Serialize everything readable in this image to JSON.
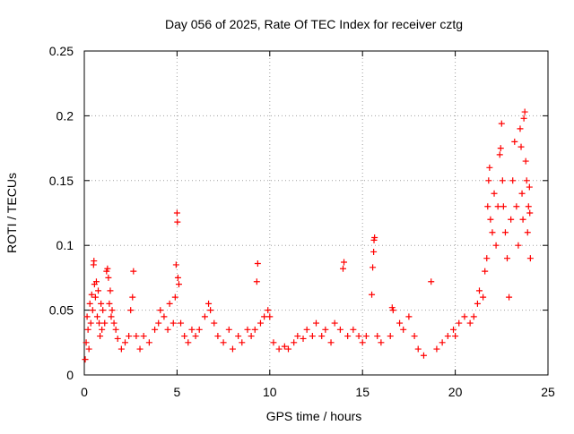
{
  "chart_data": {
    "type": "scatter",
    "title": "Day 056 of 2025, Rate Of TEC Index for receiver cztg",
    "xlabel": "GPS time / hours",
    "ylabel": "ROTI / TECUs",
    "xlim": [
      0,
      25
    ],
    "ylim": [
      0,
      0.25
    ],
    "xticks": [
      0,
      5,
      10,
      15,
      20,
      25
    ],
    "xtick_labels": [
      "0",
      "5",
      "10",
      "15",
      "20",
      "25"
    ],
    "yticks": [
      0,
      0.05,
      0.1,
      0.15,
      0.2,
      0.25
    ],
    "ytick_labels": [
      "0",
      "0.05",
      "0.1",
      "0.15",
      "0.2",
      "0.25"
    ],
    "grid": true,
    "marker": "+",
    "marker_color": "#ff0000",
    "series": [
      {
        "name": "ROTI",
        "points": [
          [
            0.05,
            0.012
          ],
          [
            0.1,
            0.025
          ],
          [
            0.15,
            0.045
          ],
          [
            0.2,
            0.035
          ],
          [
            0.25,
            0.02
          ],
          [
            0.3,
            0.055
          ],
          [
            0.35,
            0.04
          ],
          [
            0.4,
            0.062
          ],
          [
            0.45,
            0.05
          ],
          [
            0.5,
            0.085
          ],
          [
            0.52,
            0.088
          ],
          [
            0.55,
            0.07
          ],
          [
            0.6,
            0.06
          ],
          [
            0.65,
            0.072
          ],
          [
            0.7,
            0.045
          ],
          [
            0.75,
            0.065
          ],
          [
            0.8,
            0.04
          ],
          [
            0.85,
            0.03
          ],
          [
            0.9,
            0.055
          ],
          [
            0.95,
            0.035
          ],
          [
            1.0,
            0.05
          ],
          [
            1.1,
            0.04
          ],
          [
            1.2,
            0.08
          ],
          [
            1.25,
            0.082
          ],
          [
            1.3,
            0.075
          ],
          [
            1.35,
            0.055
          ],
          [
            1.4,
            0.065
          ],
          [
            1.45,
            0.045
          ],
          [
            1.5,
            0.05
          ],
          [
            1.6,
            0.04
          ],
          [
            1.7,
            0.035
          ],
          [
            1.8,
            0.028
          ],
          [
            2.0,
            0.02
          ],
          [
            2.2,
            0.025
          ],
          [
            2.4,
            0.03
          ],
          [
            2.5,
            0.05
          ],
          [
            2.6,
            0.06
          ],
          [
            2.65,
            0.08
          ],
          [
            2.8,
            0.03
          ],
          [
            3.0,
            0.02
          ],
          [
            3.2,
            0.03
          ],
          [
            3.5,
            0.025
          ],
          [
            3.8,
            0.035
          ],
          [
            4.0,
            0.04
          ],
          [
            4.1,
            0.05
          ],
          [
            4.3,
            0.045
          ],
          [
            4.5,
            0.035
          ],
          [
            4.6,
            0.055
          ],
          [
            4.8,
            0.04
          ],
          [
            4.9,
            0.06
          ],
          [
            4.95,
            0.085
          ],
          [
            5.0,
            0.125
          ],
          [
            5.02,
            0.118
          ],
          [
            5.05,
            0.075
          ],
          [
            5.1,
            0.07
          ],
          [
            5.2,
            0.04
          ],
          [
            5.4,
            0.03
          ],
          [
            5.6,
            0.025
          ],
          [
            5.8,
            0.035
          ],
          [
            6.0,
            0.03
          ],
          [
            6.2,
            0.035
          ],
          [
            6.5,
            0.045
          ],
          [
            6.7,
            0.055
          ],
          [
            6.8,
            0.05
          ],
          [
            7.0,
            0.04
          ],
          [
            7.2,
            0.03
          ],
          [
            7.5,
            0.025
          ],
          [
            7.8,
            0.035
          ],
          [
            8.0,
            0.02
          ],
          [
            8.3,
            0.03
          ],
          [
            8.5,
            0.025
          ],
          [
            8.8,
            0.035
          ],
          [
            9.0,
            0.03
          ],
          [
            9.2,
            0.035
          ],
          [
            9.3,
            0.072
          ],
          [
            9.35,
            0.086
          ],
          [
            9.5,
            0.04
          ],
          [
            9.7,
            0.045
          ],
          [
            9.9,
            0.05
          ],
          [
            10.0,
            0.045
          ],
          [
            10.2,
            0.025
          ],
          [
            10.5,
            0.02
          ],
          [
            10.8,
            0.022
          ],
          [
            11.0,
            0.02
          ],
          [
            11.3,
            0.025
          ],
          [
            11.5,
            0.03
          ],
          [
            11.8,
            0.028
          ],
          [
            12.0,
            0.035
          ],
          [
            12.3,
            0.03
          ],
          [
            12.5,
            0.04
          ],
          [
            12.8,
            0.03
          ],
          [
            13.0,
            0.035
          ],
          [
            13.3,
            0.025
          ],
          [
            13.5,
            0.04
          ],
          [
            13.8,
            0.035
          ],
          [
            13.95,
            0.082
          ],
          [
            14.0,
            0.087
          ],
          [
            14.2,
            0.03
          ],
          [
            14.5,
            0.035
          ],
          [
            14.8,
            0.03
          ],
          [
            15.0,
            0.025
          ],
          [
            15.2,
            0.03
          ],
          [
            15.5,
            0.062
          ],
          [
            15.55,
            0.083
          ],
          [
            15.6,
            0.095
          ],
          [
            15.62,
            0.104
          ],
          [
            15.65,
            0.106
          ],
          [
            15.8,
            0.03
          ],
          [
            16.0,
            0.025
          ],
          [
            16.5,
            0.03
          ],
          [
            16.6,
            0.052
          ],
          [
            16.65,
            0.05
          ],
          [
            17.0,
            0.04
          ],
          [
            17.2,
            0.035
          ],
          [
            17.5,
            0.045
          ],
          [
            17.8,
            0.03
          ],
          [
            18.0,
            0.02
          ],
          [
            18.3,
            0.015
          ],
          [
            18.7,
            0.072
          ],
          [
            19.0,
            0.02
          ],
          [
            19.3,
            0.025
          ],
          [
            19.6,
            0.03
          ],
          [
            19.9,
            0.035
          ],
          [
            20.0,
            0.03
          ],
          [
            20.2,
            0.04
          ],
          [
            20.5,
            0.045
          ],
          [
            20.8,
            0.04
          ],
          [
            21.0,
            0.045
          ],
          [
            21.2,
            0.055
          ],
          [
            21.3,
            0.065
          ],
          [
            21.5,
            0.06
          ],
          [
            21.6,
            0.08
          ],
          [
            21.7,
            0.09
          ],
          [
            21.75,
            0.13
          ],
          [
            21.8,
            0.15
          ],
          [
            21.85,
            0.16
          ],
          [
            21.9,
            0.12
          ],
          [
            22.0,
            0.11
          ],
          [
            22.1,
            0.14
          ],
          [
            22.2,
            0.1
          ],
          [
            22.3,
            0.13
          ],
          [
            22.4,
            0.17
          ],
          [
            22.45,
            0.175
          ],
          [
            22.5,
            0.194
          ],
          [
            22.55,
            0.15
          ],
          [
            22.6,
            0.13
          ],
          [
            22.7,
            0.11
          ],
          [
            22.8,
            0.09
          ],
          [
            22.9,
            0.06
          ],
          [
            23.0,
            0.12
          ],
          [
            23.1,
            0.15
          ],
          [
            23.2,
            0.18
          ],
          [
            23.3,
            0.13
          ],
          [
            23.4,
            0.1
          ],
          [
            23.5,
            0.19
          ],
          [
            23.55,
            0.176
          ],
          [
            23.6,
            0.14
          ],
          [
            23.65,
            0.12
          ],
          [
            23.7,
            0.198
          ],
          [
            23.75,
            0.203
          ],
          [
            23.8,
            0.165
          ],
          [
            23.85,
            0.15
          ],
          [
            23.9,
            0.11
          ],
          [
            23.95,
            0.13
          ],
          [
            24.0,
            0.145
          ],
          [
            24.02,
            0.125
          ],
          [
            24.05,
            0.09
          ]
        ]
      }
    ]
  }
}
